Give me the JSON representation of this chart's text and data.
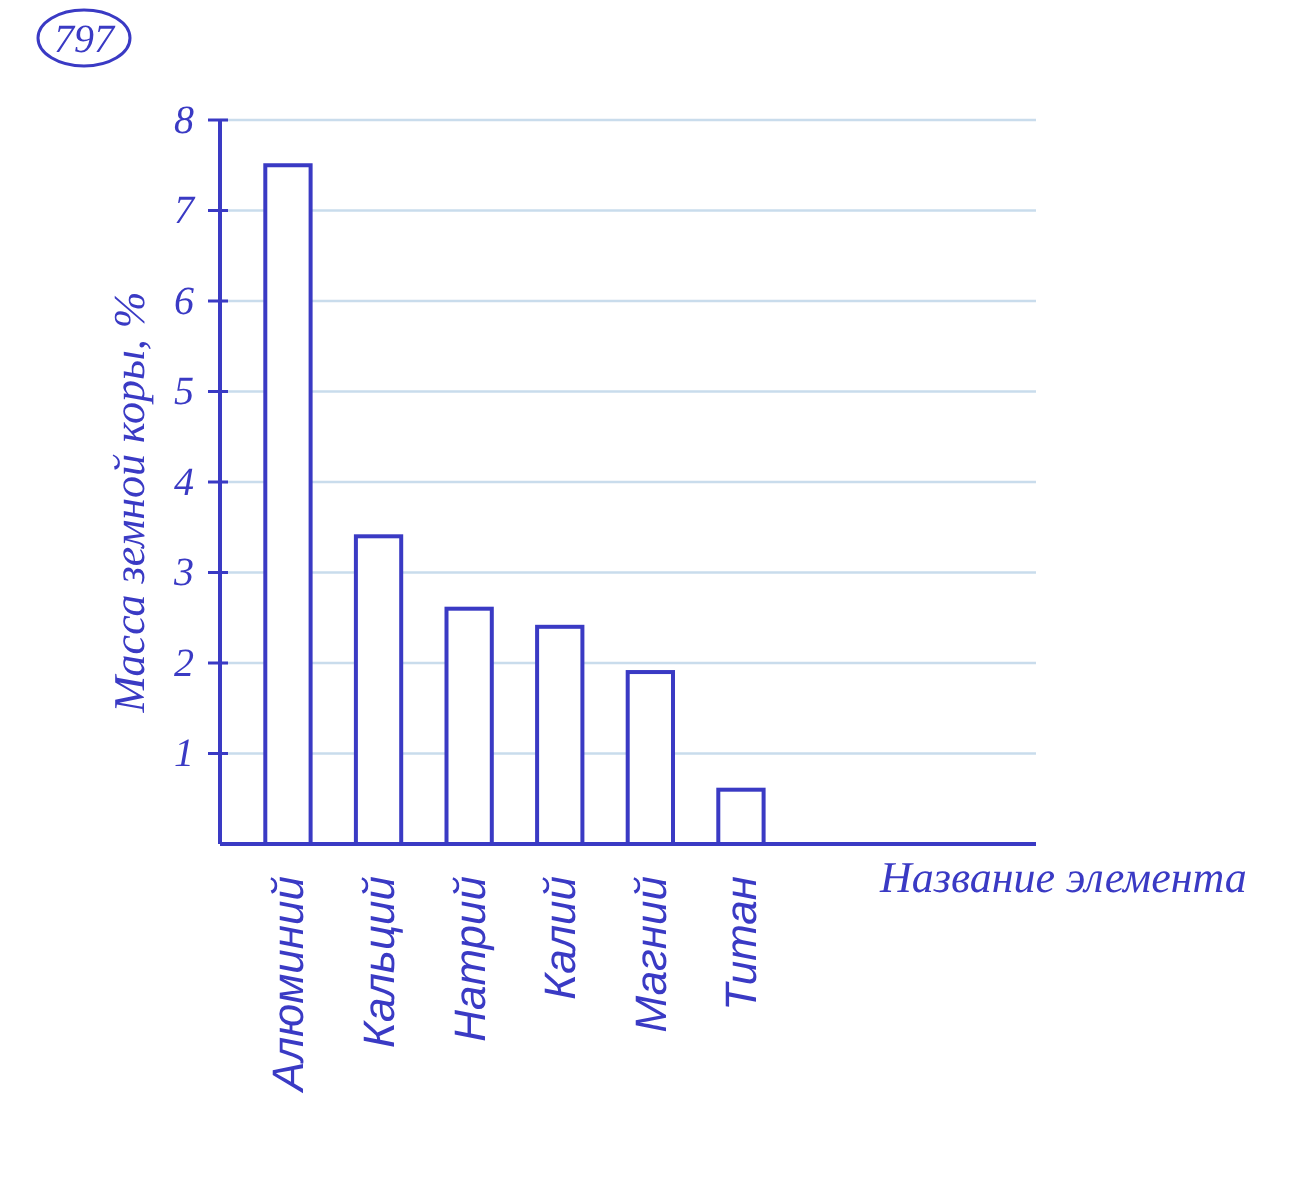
{
  "chart_data": {
    "type": "bar",
    "categories": [
      "Алюминий",
      "Кальций",
      "Натрий",
      "Калий",
      "Магний",
      "Титан"
    ],
    "values": [
      7.5,
      3.4,
      2.6,
      2.4,
      1.9,
      0.6
    ],
    "color": "#3a3ac4",
    "ylim": [
      0,
      8
    ],
    "yticks": [
      1,
      2,
      3,
      4,
      5,
      6,
      7,
      8
    ],
    "xlabel": "Название элемента",
    "ylabel": "Масса земной коры, %",
    "annotations": [
      "797"
    ],
    "grid": "y"
  }
}
